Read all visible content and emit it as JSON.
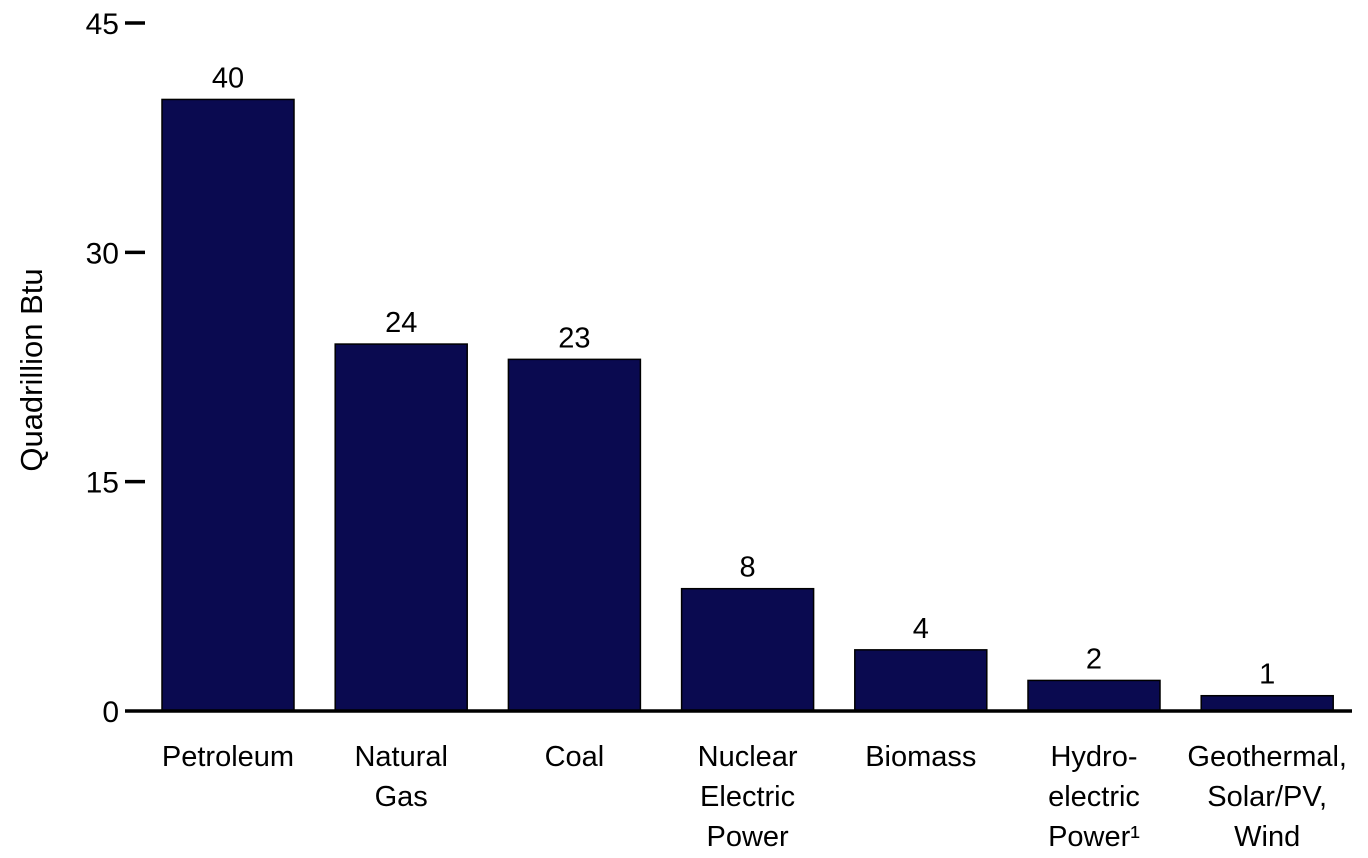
{
  "chart_data": {
    "type": "bar",
    "ylabel": "Quadrillion Btu",
    "ylim": [
      0,
      45
    ],
    "yticks": [
      0,
      15,
      30,
      45
    ],
    "grid": false,
    "bar_color": "#0a0a50",
    "categories": [
      [
        "Petroleum"
      ],
      [
        "Natural",
        "Gas"
      ],
      [
        "Coal"
      ],
      [
        "Nuclear",
        "Electric",
        "Power"
      ],
      [
        "Biomass"
      ],
      [
        "Hydro-",
        "electric",
        "Power¹"
      ],
      [
        "Geothermal,",
        "Solar/PV,",
        "Wind"
      ]
    ],
    "values": [
      40,
      24,
      23,
      8,
      4,
      2,
      1
    ],
    "data_labels": [
      "40",
      "24",
      "23",
      "8",
      "4",
      "2",
      "1"
    ]
  }
}
